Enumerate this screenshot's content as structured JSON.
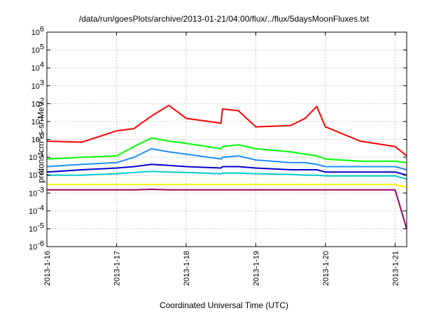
{
  "chart_data": {
    "type": "line",
    "title": "/data/run/goesPlots/archive/2013-01-21/04:00/flux/../flux/5daysMoonFluxes.txt",
    "xlabel": "Coordinated Universal Time (UTC)",
    "ylabel": "protons/cm2-s-sr-MeV",
    "ylabel_parts": {
      "pre": "protons/cm",
      "sup": "2",
      "post": "-s-sr-MeV"
    },
    "yscale": "log",
    "ylim": [
      1e-06,
      1000000.0
    ],
    "ytick_labels": [
      {
        "base": "10",
        "exp": "-6"
      },
      {
        "base": "10",
        "exp": "-5"
      },
      {
        "base": "10",
        "exp": "-4"
      },
      {
        "base": "10",
        "exp": "-3"
      },
      {
        "base": "10",
        "exp": "-2"
      },
      {
        "base": "10",
        "exp": "-1"
      },
      {
        "base": "10",
        "exp": "0"
      },
      {
        "base": "10",
        "exp": "1"
      },
      {
        "base": "10",
        "exp": "2"
      },
      {
        "base": "10",
        "exp": "3"
      },
      {
        "base": "10",
        "exp": "4"
      },
      {
        "base": "10",
        "exp": "5"
      },
      {
        "base": "10",
        "exp": "6"
      }
    ],
    "xlim": [
      "2013-01-16 00:00",
      "2013-01-21 04:00"
    ],
    "xtick_labels": [
      "2013-1-16",
      "2013-1-17",
      "2013-1-18",
      "2013-1-19",
      "2013-1-20",
      "2013-1-21"
    ],
    "grid": true,
    "x": [
      "2013-01-16 00:00",
      "2013-01-16 12:00",
      "2013-01-17 00:00",
      "2013-01-17 06:00",
      "2013-01-17 12:00",
      "2013-01-17 18:00",
      "2013-01-18 00:00",
      "2013-01-18 12:00",
      "2013-01-18 12:30",
      "2013-01-18 18:00",
      "2013-01-19 00:00",
      "2013-01-19 12:00",
      "2013-01-19 17:00",
      "2013-01-19 21:00",
      "2013-01-20 00:00",
      "2013-01-20 12:00",
      "2013-01-21 00:00",
      "2013-01-21 04:00"
    ],
    "series": [
      {
        "color": "#ff0000",
        "values": [
          0.8,
          0.7,
          3.0,
          4.0,
          20,
          80,
          15,
          8,
          50,
          40,
          5,
          6,
          15,
          70,
          5,
          0.8,
          0.4,
          0.12
        ]
      },
      {
        "color": "#00ff00",
        "values": [
          0.08,
          0.1,
          0.12,
          0.4,
          1.2,
          0.8,
          0.6,
          0.3,
          0.4,
          0.5,
          0.3,
          0.2,
          0.15,
          0.12,
          0.08,
          0.06,
          0.06,
          0.05
        ]
      },
      {
        "color": "#1e8fff",
        "values": [
          0.03,
          0.04,
          0.05,
          0.1,
          0.3,
          0.2,
          0.15,
          0.08,
          0.1,
          0.12,
          0.07,
          0.05,
          0.05,
          0.04,
          0.03,
          0.03,
          0.03,
          0.02
        ]
      },
      {
        "color": "#0000cc",
        "values": [
          0.015,
          0.02,
          0.025,
          0.03,
          0.04,
          0.035,
          0.03,
          0.025,
          0.03,
          0.03,
          0.025,
          0.02,
          0.02,
          0.02,
          0.015,
          0.015,
          0.015,
          0.01
        ]
      },
      {
        "color": "#00cccc",
        "values": [
          0.01,
          0.01,
          0.012,
          0.014,
          0.016,
          0.015,
          0.014,
          0.012,
          0.013,
          0.013,
          0.012,
          0.011,
          0.01,
          0.01,
          0.009,
          0.009,
          0.009,
          0.006
        ]
      },
      {
        "color": "#ffff00",
        "values": [
          0.003,
          0.003,
          0.003,
          0.003,
          0.003,
          0.003,
          0.003,
          0.003,
          0.003,
          0.003,
          0.003,
          0.003,
          0.003,
          0.003,
          0.003,
          0.003,
          0.003,
          0.002
        ]
      },
      {
        "color": "#990066",
        "values": [
          0.0015,
          0.0015,
          0.0015,
          0.0015,
          0.0016,
          0.0015,
          0.0015,
          0.0015,
          0.0015,
          0.0015,
          0.0015,
          0.0015,
          0.0015,
          0.0015,
          0.0015,
          0.0015,
          0.0015,
          1e-05
        ]
      }
    ]
  }
}
